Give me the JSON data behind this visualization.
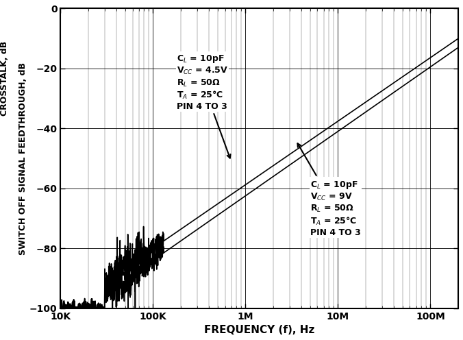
{
  "xlabel": "FREQUENCY (f), Hz",
  "ylabel": "SWITCH OFF SIGNAL FEEDTHROUGH, dB",
  "ylabel2": "CROSSTALK, dB",
  "xlim": [
    10000,
    200000000
  ],
  "ylim": [
    -100,
    0
  ],
  "yticks": [
    0,
    -20,
    -40,
    -60,
    -80,
    -100
  ],
  "background_color": "#ffffff",
  "line_color": "#000000",
  "ann1_text": "C$_L$ = 10pF\nV$_{CC}$ = 4.5V\nR$_L$ = 50Ω\nT$_A$ = 25°C\nPIN 4 TO 3",
  "ann2_text": "C$_L$ = 10pF\nV$_{CC}$ = 9V\nR$_L$ = 50Ω\nT$_A$ = 25°C\nPIN 4 TO 3"
}
